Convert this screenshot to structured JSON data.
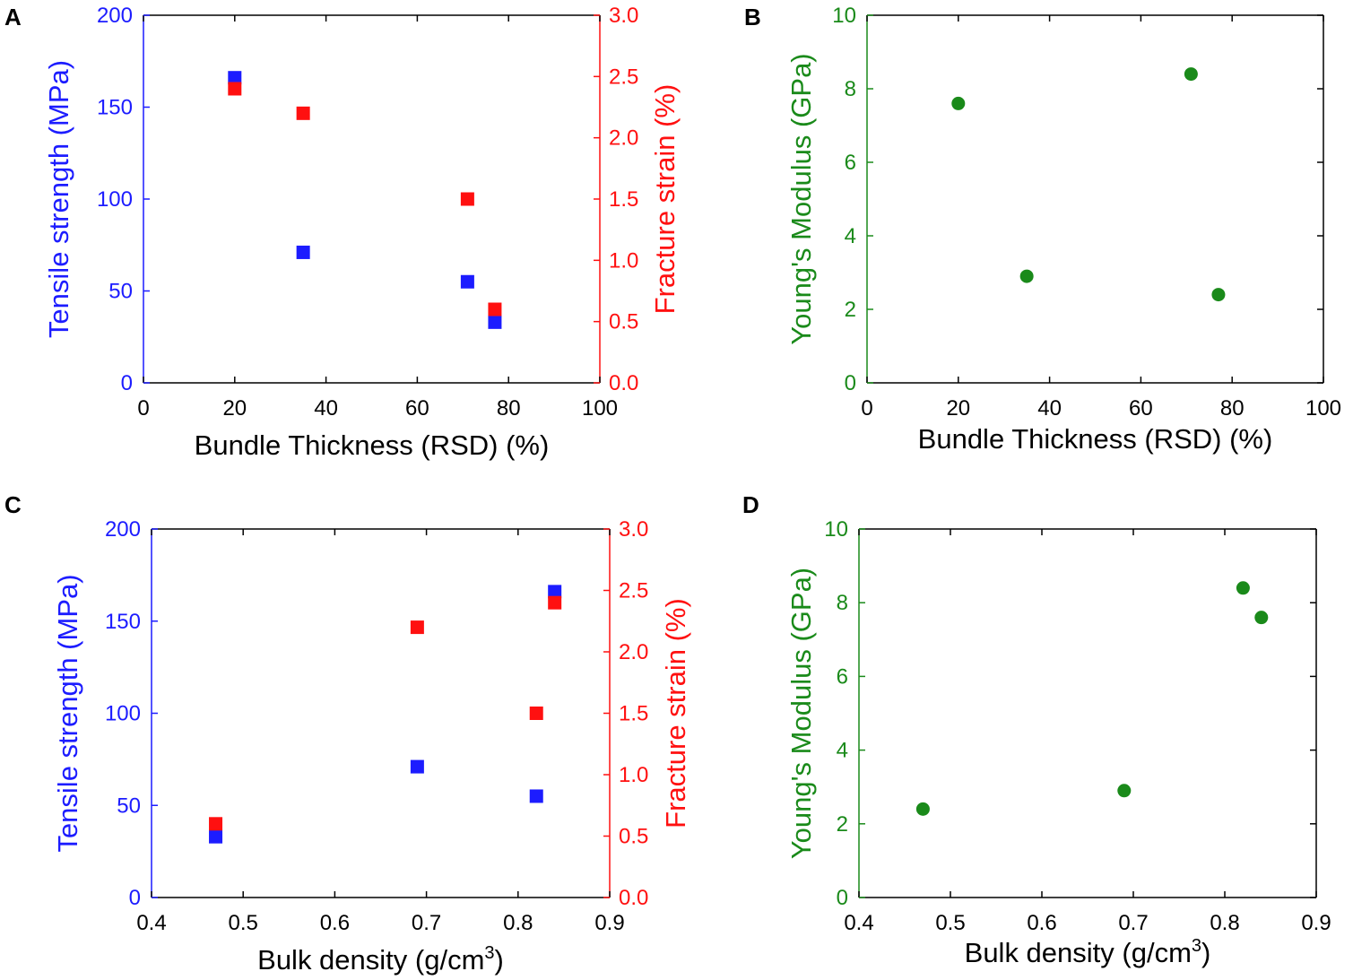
{
  "colors": {
    "blue": "#1c1cff",
    "red": "#ff1010",
    "green": "#1a8a1a",
    "black": "#000000"
  },
  "chart_data": [
    {
      "id": "A",
      "panel_label": "A",
      "type": "scatter",
      "title": "",
      "xlabel": "Bundle Thickness (RSD) (%)",
      "xlabel_sup": "",
      "xlabel_tail": "",
      "ylabel_left": "Tensile strength (MPa)",
      "ylabel_right": "Fracture strain (%)",
      "xlim": [
        0,
        100
      ],
      "ylim_left": [
        0,
        200
      ],
      "ylim_right": [
        0,
        3.0
      ],
      "xticks": [
        0,
        20,
        40,
        60,
        80,
        100
      ],
      "xtick_labels": [
        "0",
        "20",
        "40",
        "60",
        "80",
        "100"
      ],
      "yticks_left": [
        0,
        50,
        100,
        150,
        200
      ],
      "ytick_labels_left": [
        "0",
        "50",
        "100",
        "150",
        "200"
      ],
      "yticks_right": [
        0,
        0.5,
        1.0,
        1.5,
        2.0,
        2.5,
        3.0
      ],
      "ytick_labels_right": [
        "0.0",
        "0.5",
        "1.0",
        "1.5",
        "2.0",
        "2.5",
        "3.0"
      ],
      "series": [
        {
          "name": "Tensile strength",
          "axis": "left",
          "marker": "square",
          "color": "#1c1cff",
          "x": [
            20,
            35,
            71,
            77
          ],
          "y": [
            166,
            71,
            55,
            33
          ]
        },
        {
          "name": "Fracture strain",
          "axis": "right",
          "marker": "square",
          "color": "#ff1010",
          "x": [
            20,
            35,
            71,
            77
          ],
          "y": [
            2.4,
            2.2,
            1.5,
            0.6
          ]
        }
      ]
    },
    {
      "id": "B",
      "panel_label": "B",
      "type": "scatter",
      "title": "",
      "xlabel": "Bundle Thickness (RSD) (%)",
      "xlabel_sup": "",
      "xlabel_tail": "",
      "ylabel_left": "Young's Modulus (GPa)",
      "ylabel_right": "",
      "xlim": [
        0,
        100
      ],
      "ylim_left": [
        0,
        10
      ],
      "xticks": [
        0,
        20,
        40,
        60,
        80,
        100
      ],
      "xtick_labels": [
        "0",
        "20",
        "40",
        "60",
        "80",
        "100"
      ],
      "yticks_left": [
        0,
        2,
        4,
        6,
        8,
        10
      ],
      "ytick_labels_left": [
        "0",
        "2",
        "4",
        "6",
        "8",
        "10"
      ],
      "series": [
        {
          "name": "Young's Modulus",
          "axis": "left",
          "marker": "circle",
          "color": "#1a8a1a",
          "x": [
            20,
            35,
            71,
            77
          ],
          "y": [
            7.6,
            2.9,
            8.4,
            2.4
          ]
        }
      ]
    },
    {
      "id": "C",
      "panel_label": "C",
      "type": "scatter",
      "title": "",
      "xlabel": "Bulk density (g/cm",
      "xlabel_sup": "3",
      "xlabel_tail": ")",
      "ylabel_left": "Tensile strength (MPa)",
      "ylabel_right": "Fracture strain (%)",
      "xlim": [
        0.4,
        0.9
      ],
      "ylim_left": [
        0,
        200
      ],
      "ylim_right": [
        0,
        3.0
      ],
      "xticks": [
        0.4,
        0.5,
        0.6,
        0.7,
        0.8,
        0.9
      ],
      "xtick_labels": [
        "0.4",
        "0.5",
        "0.6",
        "0.7",
        "0.8",
        "0.9"
      ],
      "yticks_left": [
        0,
        50,
        100,
        150,
        200
      ],
      "ytick_labels_left": [
        "0",
        "50",
        "100",
        "150",
        "200"
      ],
      "yticks_right": [
        0,
        0.5,
        1.0,
        1.5,
        2.0,
        2.5,
        3.0
      ],
      "ytick_labels_right": [
        "0.0",
        "0.5",
        "1.0",
        "1.5",
        "2.0",
        "2.5",
        "3.0"
      ],
      "series": [
        {
          "name": "Tensile strength",
          "axis": "left",
          "marker": "square",
          "color": "#1c1cff",
          "x": [
            0.47,
            0.69,
            0.82,
            0.84
          ],
          "y": [
            33,
            71,
            55,
            166
          ]
        },
        {
          "name": "Fracture strain",
          "axis": "right",
          "marker": "square",
          "color": "#ff1010",
          "x": [
            0.47,
            0.69,
            0.82,
            0.84
          ],
          "y": [
            0.6,
            2.2,
            1.5,
            2.4
          ]
        }
      ]
    },
    {
      "id": "D",
      "panel_label": "D",
      "type": "scatter",
      "title": "",
      "xlabel": "Bulk density (g/cm",
      "xlabel_sup": "3",
      "xlabel_tail": ")",
      "ylabel_left": "Young's Modulus (GPa)",
      "ylabel_right": "",
      "xlim": [
        0.4,
        0.9
      ],
      "ylim_left": [
        0,
        10
      ],
      "xticks": [
        0.4,
        0.5,
        0.6,
        0.7,
        0.8,
        0.9
      ],
      "xtick_labels": [
        "0.4",
        "0.5",
        "0.6",
        "0.7",
        "0.8",
        "0.9"
      ],
      "yticks_left": [
        0,
        2,
        4,
        6,
        8,
        10
      ],
      "ytick_labels_left": [
        "0",
        "2",
        "4",
        "6",
        "8",
        "10"
      ],
      "series": [
        {
          "name": "Young's Modulus",
          "axis": "left",
          "marker": "circle",
          "color": "#1a8a1a",
          "x": [
            0.47,
            0.69,
            0.82,
            0.84
          ],
          "y": [
            2.4,
            2.9,
            8.4,
            7.6
          ]
        }
      ]
    }
  ]
}
